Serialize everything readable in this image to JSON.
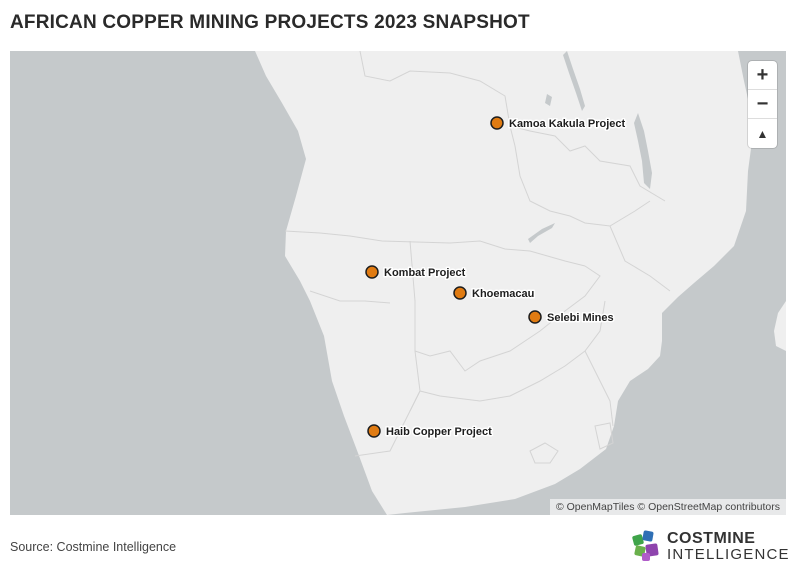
{
  "title": "AFRICAN COPPER MINING PROJECTS 2023 SNAPSHOT",
  "map": {
    "attribution": "© OpenMapTiles © OpenStreetMap contributors",
    "controls": {
      "zoom_in": "+",
      "zoom_out": "−",
      "compass": "▲"
    },
    "marker_color": "#e07b12",
    "land_color": "#efefef",
    "water_color": "#c5c9cb",
    "markers": [
      {
        "name": "Kamoa Kakula Project"
      },
      {
        "name": "Kombat Project"
      },
      {
        "name": "Khoemacau"
      },
      {
        "name": "Selebi Mines"
      },
      {
        "name": "Haib Copper Project"
      }
    ]
  },
  "source": "Source: Costmine Intelligence",
  "logo": {
    "line1": "COSTMINE",
    "line2": "INTELLIGENCE"
  }
}
